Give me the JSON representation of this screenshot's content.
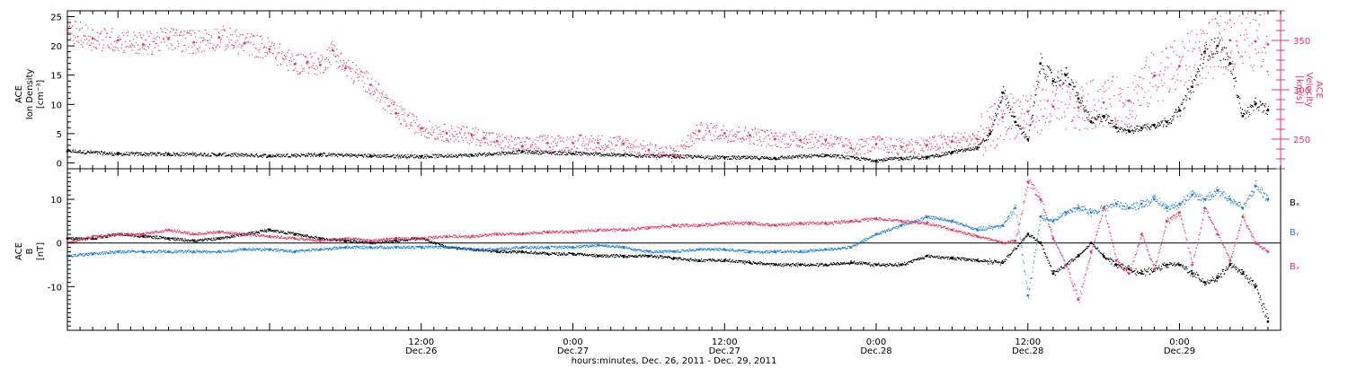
{
  "figure": {
    "xaxis_title": "hours:minutes, Dec. 26, 2011 - Dec. 29, 2011",
    "time_start_hours": -16,
    "time_end_hours": 80,
    "ticks": [
      {
        "t": 12,
        "time": "12:00",
        "date": "Dec.26"
      },
      {
        "t": 24,
        "time": "0:00",
        "date": "Dec.27"
      },
      {
        "t": 36,
        "time": "12:00",
        "date": "Dec.27"
      },
      {
        "t": 48,
        "time": "0:00",
        "date": "Dec.28"
      },
      {
        "t": 60,
        "time": "12:00",
        "date": "Dec.28"
      },
      {
        "t": 72,
        "time": "0:00",
        "date": "Dec.29"
      }
    ]
  },
  "colors": {
    "black": "#000000",
    "pink": "#e8345f",
    "blue": "#1e7fd8",
    "axis_right": "#e8346a"
  },
  "chart_data": [
    {
      "type": "scatter",
      "panel": "top",
      "ylabel_left": [
        "ACE",
        "Ion Density",
        "[cm⁻³]"
      ],
      "ylabel_right": [
        "ACE",
        "Velocity",
        "[km/s]"
      ],
      "ylim_left": [
        -1,
        26
      ],
      "yticks_left": [
        0,
        5,
        10,
        15,
        20,
        25
      ],
      "ylim_right": [
        220,
        380
      ],
      "yticks_right": [
        250,
        300,
        350
      ],
      "series": [
        {
          "axis": "left",
          "color": "black",
          "x": [
            -16,
            -12,
            -8,
            -4,
            0,
            4,
            8,
            12,
            16,
            20,
            24,
            28,
            32,
            36,
            40,
            44,
            48,
            50,
            52,
            54,
            56,
            57,
            58,
            59,
            60,
            61,
            62,
            63,
            64,
            65,
            66,
            67,
            68,
            69,
            70,
            71,
            72,
            73,
            74,
            75,
            76,
            77,
            78,
            79
          ],
          "y": [
            2,
            1.5,
            1.5,
            1.4,
            1.2,
            1.4,
            1.2,
            1.1,
            1.3,
            1.9,
            1.6,
            1.3,
            1.1,
            0.9,
            0.8,
            1.3,
            0.4,
            0.8,
            0.9,
            1.8,
            2.6,
            5,
            12,
            7,
            4,
            17,
            14,
            15,
            11,
            7,
            8,
            6,
            5.5,
            6,
            6.5,
            7,
            9,
            13,
            19,
            20,
            17,
            8,
            10,
            9
          ]
        },
        {
          "axis": "right",
          "color": "pink",
          "x": [
            -16,
            -14,
            -12,
            -10,
            -8,
            -6,
            -4,
            -2,
            0,
            2,
            3,
            4,
            5,
            6,
            8,
            10,
            12,
            14,
            16,
            17,
            18,
            20,
            22,
            24,
            26,
            28,
            30,
            32,
            34,
            36,
            38,
            40,
            42,
            44,
            46,
            48,
            50,
            52,
            54,
            56,
            57,
            58,
            60,
            62,
            64,
            66,
            68,
            70,
            72,
            74,
            76,
            78,
            79
          ],
          "y": [
            360,
            352,
            350,
            346,
            352,
            348,
            353,
            347,
            341,
            326,
            328,
            325,
            340,
            322,
            305,
            276,
            261,
            256,
            254,
            251,
            248,
            243,
            246,
            246,
            246,
            245,
            239,
            234,
            258,
            256,
            254,
            250,
            249,
            249,
            241,
            245,
            242,
            244,
            248,
            250,
            259,
            272,
            278,
            283,
            282,
            287,
            289,
            314,
            324,
            337,
            350,
            349,
            346
          ]
        }
      ]
    },
    {
      "type": "scatter",
      "panel": "bottom",
      "ylabel_left": [
        "ACE",
        "B",
        "[nT]"
      ],
      "ylim": [
        -20,
        17
      ],
      "yticks": [
        -10,
        0,
        10
      ],
      "zero_line": true,
      "series": [
        {
          "name": "Bₓ",
          "color": "black",
          "x": [
            -16,
            -14,
            -12,
            -10,
            -8,
            -6,
            -4,
            -2,
            0,
            2,
            4,
            6,
            8,
            10,
            12,
            14,
            16,
            18,
            20,
            22,
            24,
            26,
            28,
            30,
            32,
            34,
            36,
            38,
            40,
            42,
            44,
            46,
            48,
            50,
            52,
            54,
            56,
            58,
            60,
            61,
            62,
            63,
            64,
            65,
            66,
            67,
            68,
            69,
            70,
            71,
            72,
            73,
            74,
            75,
            76,
            77,
            78,
            79
          ],
          "y": [
            1,
            1,
            2,
            1.5,
            1,
            0.5,
            1,
            2,
            3,
            2,
            1,
            0.5,
            0,
            0.5,
            1,
            -1,
            -1.5,
            -2,
            -2,
            -2.5,
            -2.5,
            -3,
            -3,
            -3,
            -3.5,
            -4,
            -4,
            -4.5,
            -5,
            -5,
            -5,
            -4.5,
            -5,
            -5,
            -3,
            -3.5,
            -4,
            -4.5,
            2,
            0,
            -7,
            -5,
            -3,
            0,
            -3,
            -5,
            -6,
            -7,
            -6,
            -5,
            -5,
            -7,
            -9,
            -8,
            -5,
            -7,
            -10,
            -18
          ]
        },
        {
          "name": "Bᵧ",
          "color": "blue",
          "x": [
            -16,
            -14,
            -12,
            -10,
            -8,
            -6,
            -4,
            -2,
            0,
            2,
            4,
            6,
            8,
            10,
            12,
            14,
            16,
            18,
            20,
            22,
            24,
            26,
            28,
            30,
            32,
            34,
            36,
            38,
            40,
            42,
            44,
            46,
            48,
            50,
            52,
            54,
            56,
            58,
            59,
            60,
            61,
            62,
            63,
            64,
            65,
            66,
            67,
            68,
            69,
            70,
            71,
            72,
            73,
            74,
            75,
            76,
            77,
            78,
            79
          ],
          "y": [
            -3,
            -2.5,
            -2,
            -2,
            -2,
            -2,
            -2,
            -1.5,
            -1.5,
            -2,
            -1.5,
            -1,
            -1,
            -1,
            -1,
            -1,
            -1.5,
            -1.5,
            -1,
            -1,
            -1,
            -0.5,
            -1,
            -2,
            -2,
            -1.5,
            -1.5,
            -2,
            -2,
            -2,
            -1.5,
            -1,
            2,
            4,
            6,
            5,
            3,
            4,
            8,
            -12,
            6,
            5,
            7,
            8,
            7,
            8,
            9,
            8,
            9,
            10,
            8,
            9,
            11,
            10,
            12,
            10,
            8,
            13,
            10
          ]
        },
        {
          "name": "Bₓ",
          "color": "pink",
          "x": [
            -16,
            -14,
            -12,
            -10,
            -8,
            -6,
            -4,
            -2,
            0,
            2,
            4,
            6,
            8,
            10,
            12,
            14,
            16,
            18,
            20,
            22,
            24,
            26,
            28,
            30,
            32,
            34,
            36,
            38,
            40,
            42,
            44,
            46,
            48,
            50,
            52,
            54,
            56,
            58,
            59,
            60,
            61,
            62,
            63,
            64,
            65,
            66,
            67,
            68,
            69,
            70,
            71,
            72,
            73,
            74,
            75,
            76,
            77,
            78,
            79
          ],
          "y": [
            0,
            1.5,
            2,
            2,
            3,
            2,
            2.5,
            2,
            1.5,
            1,
            0.5,
            1,
            0.5,
            1,
            1,
            1.5,
            1.5,
            2,
            2,
            2.5,
            2.5,
            3,
            3,
            3.5,
            4,
            4,
            4.5,
            4.5,
            4,
            4.5,
            4.5,
            5,
            5.5,
            5,
            4.5,
            3,
            1.5,
            0,
            0.5,
            14,
            10,
            1,
            -5,
            -13,
            -2,
            8,
            -4,
            -7,
            2,
            -6,
            5,
            7,
            -5,
            8,
            2,
            -4,
            6,
            0,
            -2
          ]
        }
      ],
      "legend": {
        "placement": "right",
        "labels": [
          "Bₓ",
          "Bᵧ",
          "Bₓ"
        ]
      }
    }
  ]
}
